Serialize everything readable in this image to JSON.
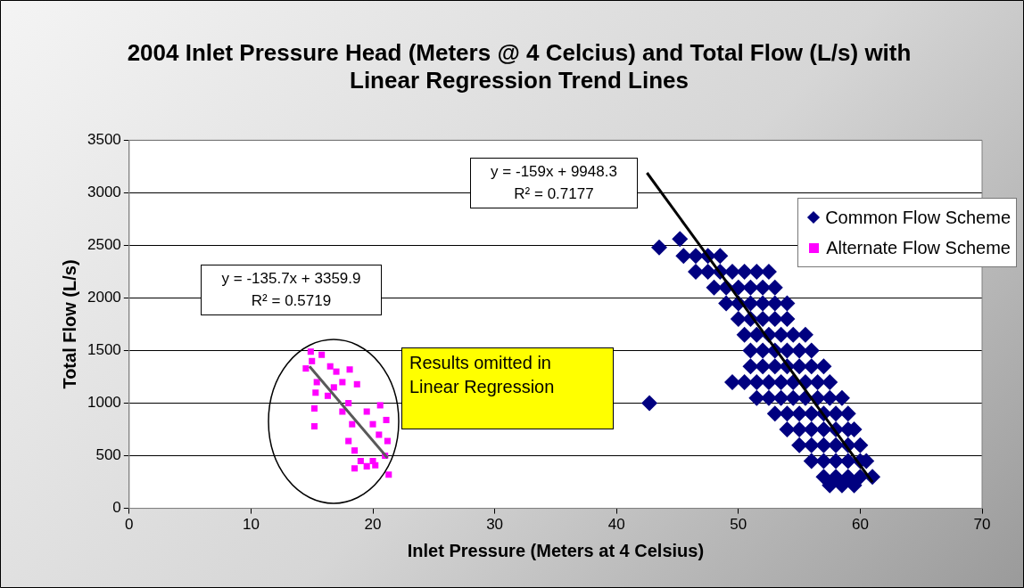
{
  "chart_data": {
    "type": "scatter",
    "title": "2004 Inlet Pressure Head (Meters @ 4 Celcius) and Total Flow (L/s) with Linear Regression Trend Lines",
    "xlabel": "Inlet Pressure (Meters at 4 Celsius)",
    "ylabel": "Total Flow (L/s)",
    "xlim": [
      0,
      70
    ],
    "xticks": [
      0,
      10,
      20,
      30,
      40,
      50,
      60,
      70
    ],
    "ylim": [
      0,
      3500
    ],
    "yticks": [
      0,
      500,
      1000,
      1500,
      2000,
      2500,
      3000,
      3500
    ],
    "grid": "y",
    "legend": "top right",
    "annotations": [
      "y = -159x + 9948.3\nR² = 0.7177",
      "y = -135.7x + 3359.9\nR² = 0.5719",
      "Results omitted in Linear Regression"
    ],
    "series": [
      {
        "name": "Common Flow Scheme",
        "color": "#000080",
        "marker": "diamond",
        "x": [
          42.7,
          43.5,
          45.2,
          45.5,
          46.5,
          47.5,
          48.5,
          46.5,
          47.5,
          48.5,
          49.5,
          50.5,
          51.5,
          52.5,
          48,
          49,
          50,
          51,
          52,
          53,
          49,
          50,
          51,
          52,
          53,
          54,
          50,
          51,
          52,
          53,
          54,
          50.5,
          51.5,
          52.5,
          53.5,
          54.5,
          55.5,
          51,
          52,
          53,
          54,
          55,
          56,
          51,
          52,
          53,
          54,
          55,
          56,
          57,
          49.5,
          50.5,
          51.5,
          52.5,
          53.5,
          54.5,
          55.5,
          56.5,
          57.5,
          51.5,
          52.5,
          53.5,
          54.5,
          55.5,
          56.5,
          57.5,
          58.5,
          53,
          54,
          55,
          56,
          57,
          58,
          59,
          54,
          55,
          56,
          57,
          58,
          59,
          59.5,
          55,
          56,
          57,
          58,
          59,
          60,
          56,
          57,
          58,
          59,
          60,
          60.5,
          57,
          58,
          59,
          60,
          61,
          57.5,
          58.5,
          59.5
        ],
        "values": [
          1000,
          2480,
          2560,
          2400,
          2400,
          2400,
          2400,
          2250,
          2250,
          2250,
          2250,
          2250,
          2250,
          2250,
          2100,
          2100,
          2100,
          2100,
          2100,
          2100,
          1950,
          1950,
          1950,
          1950,
          1950,
          1950,
          1800,
          1800,
          1800,
          1800,
          1800,
          1650,
          1650,
          1650,
          1650,
          1650,
          1650,
          1500,
          1500,
          1500,
          1500,
          1500,
          1500,
          1350,
          1350,
          1350,
          1350,
          1350,
          1350,
          1350,
          1200,
          1200,
          1200,
          1200,
          1200,
          1200,
          1200,
          1200,
          1200,
          1050,
          1050,
          1050,
          1050,
          1050,
          1050,
          1050,
          1050,
          900,
          900,
          900,
          900,
          900,
          900,
          900,
          750,
          750,
          750,
          750,
          750,
          750,
          750,
          600,
          600,
          600,
          600,
          600,
          600,
          450,
          450,
          450,
          450,
          450,
          450,
          300,
          300,
          300,
          300,
          300,
          220,
          220,
          220
        ]
      },
      {
        "name": "Alternate Flow Scheme",
        "color": "#ff00ff",
        "marker": "square",
        "x": [
          14.9,
          14.5,
          15.2,
          15.8,
          17.0,
          18.1,
          18.7,
          19.5,
          20.6,
          21.1,
          21.2,
          21.3,
          20.2,
          18.5,
          18.0,
          17.5,
          16.3,
          15.4,
          15.0,
          15.3,
          15.2,
          16.5,
          17.5,
          18.0,
          18.3,
          18.5,
          19.0,
          19.5,
          20.0,
          20.5,
          21.0,
          20.0,
          16.8
        ],
        "values": [
          1490,
          1330,
          780,
          1460,
          1300,
          1320,
          1180,
          920,
          980,
          840,
          640,
          320,
          410,
          380,
          640,
          920,
          1070,
          1200,
          1400,
          1100,
          950,
          1350,
          1200,
          1000,
          800,
          550,
          450,
          400,
          450,
          700,
          500,
          800,
          1150
        ]
      },
      {
        "type": "line",
        "color": "#000000",
        "marker": "none",
        "line_style": "solid",
        "x": [
          42.5,
          61
        ],
        "values": [
          3190,
          250
        ]
      },
      {
        "type": "line",
        "color": "#595959",
        "marker": "none",
        "line_style": "solid",
        "x": [
          14.8,
          21.2
        ],
        "values": [
          1350,
          480
        ]
      }
    ]
  }
}
